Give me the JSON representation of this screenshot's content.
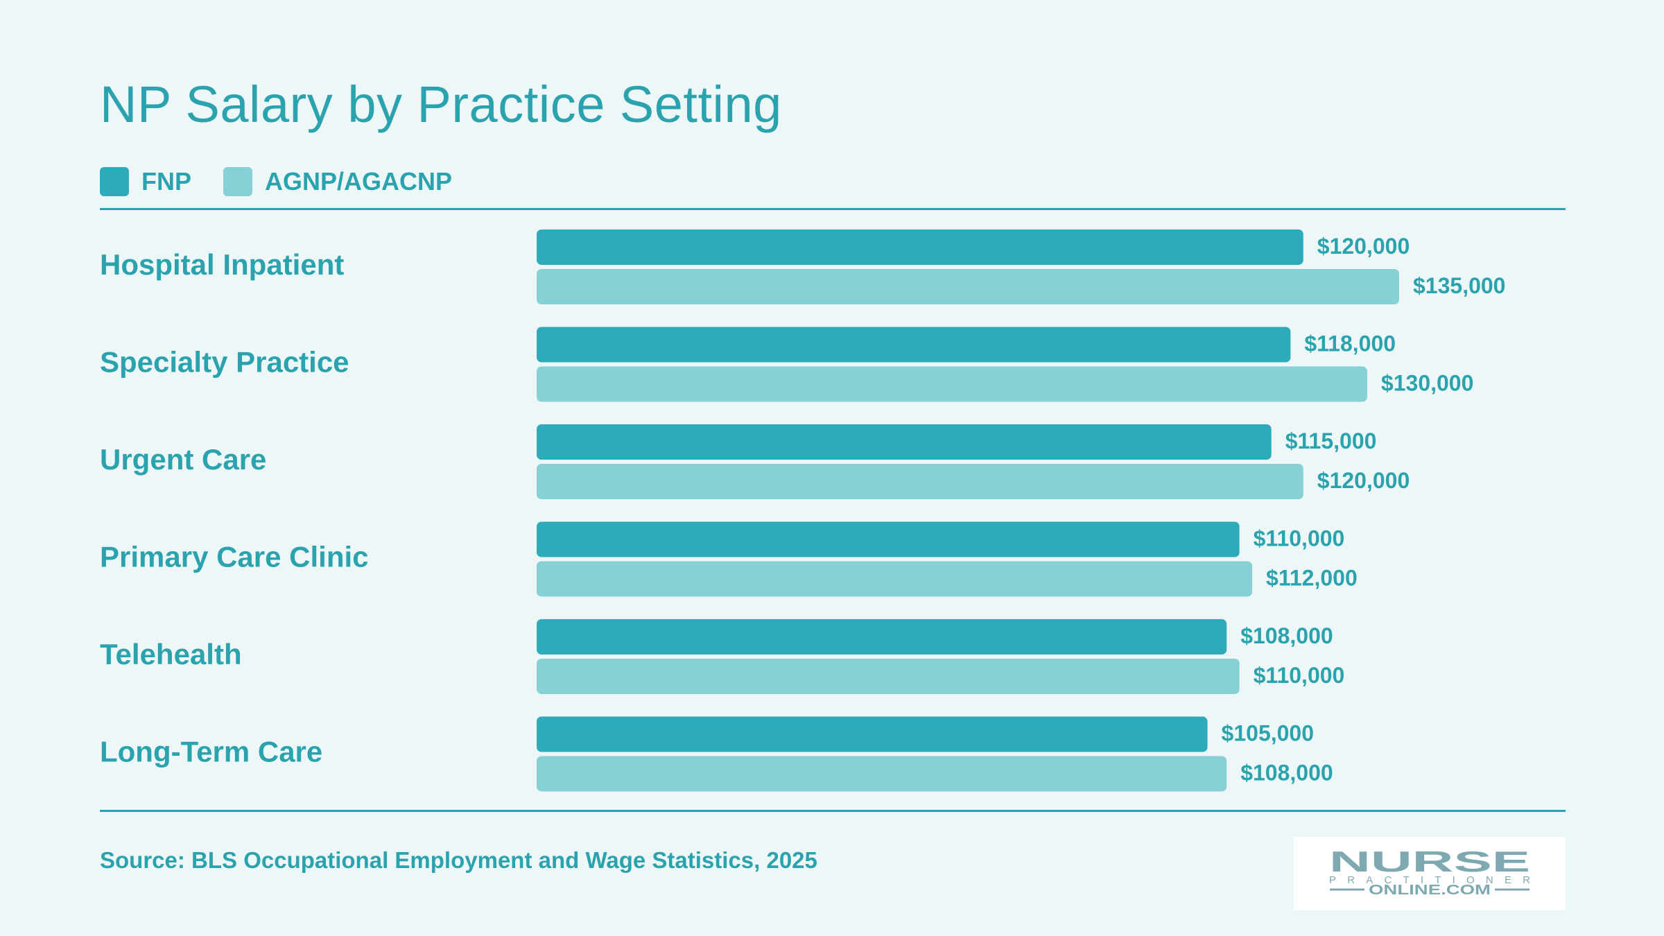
{
  "colors": {
    "background": "#eef7f8",
    "text": "#2ba3ae",
    "fnp": "#2eabba",
    "agnp": "#86d0d6",
    "logo_text": "#7fa9b0"
  },
  "logo": {
    "line1": "NURSE",
    "line2": "PRACTITIONER",
    "line3": "ONLINE.COM"
  },
  "chart_data": {
    "type": "bar",
    "orientation": "horizontal",
    "title": "NP Salary by Practice Setting",
    "xlabel": "",
    "ylabel": "",
    "xlim": [
      0,
      135000
    ],
    "grid": false,
    "legend": "top-left",
    "categories": [
      "Hospital Inpatient",
      "Specialty Practice",
      "Urgent Care",
      "Primary Care Clinic",
      "Telehealth",
      "Long-Term Care"
    ],
    "series": [
      {
        "name": "FNP",
        "values": [
          120000,
          118000,
          115000,
          110000,
          108000,
          105000
        ],
        "labels": [
          "$120,000",
          "$118,000",
          "$115,000",
          "$110,000",
          "$108,000",
          "$105,000"
        ]
      },
      {
        "name": "AGNP/AGACNP",
        "values": [
          135000,
          130000,
          120000,
          112000,
          110000,
          108000
        ],
        "labels": [
          "$135,000",
          "$130,000",
          "$120,000",
          "$112,000",
          "$110,000",
          "$108,000"
        ]
      }
    ],
    "source": "Source: BLS Occupational Employment and Wage Statistics, 2025"
  }
}
